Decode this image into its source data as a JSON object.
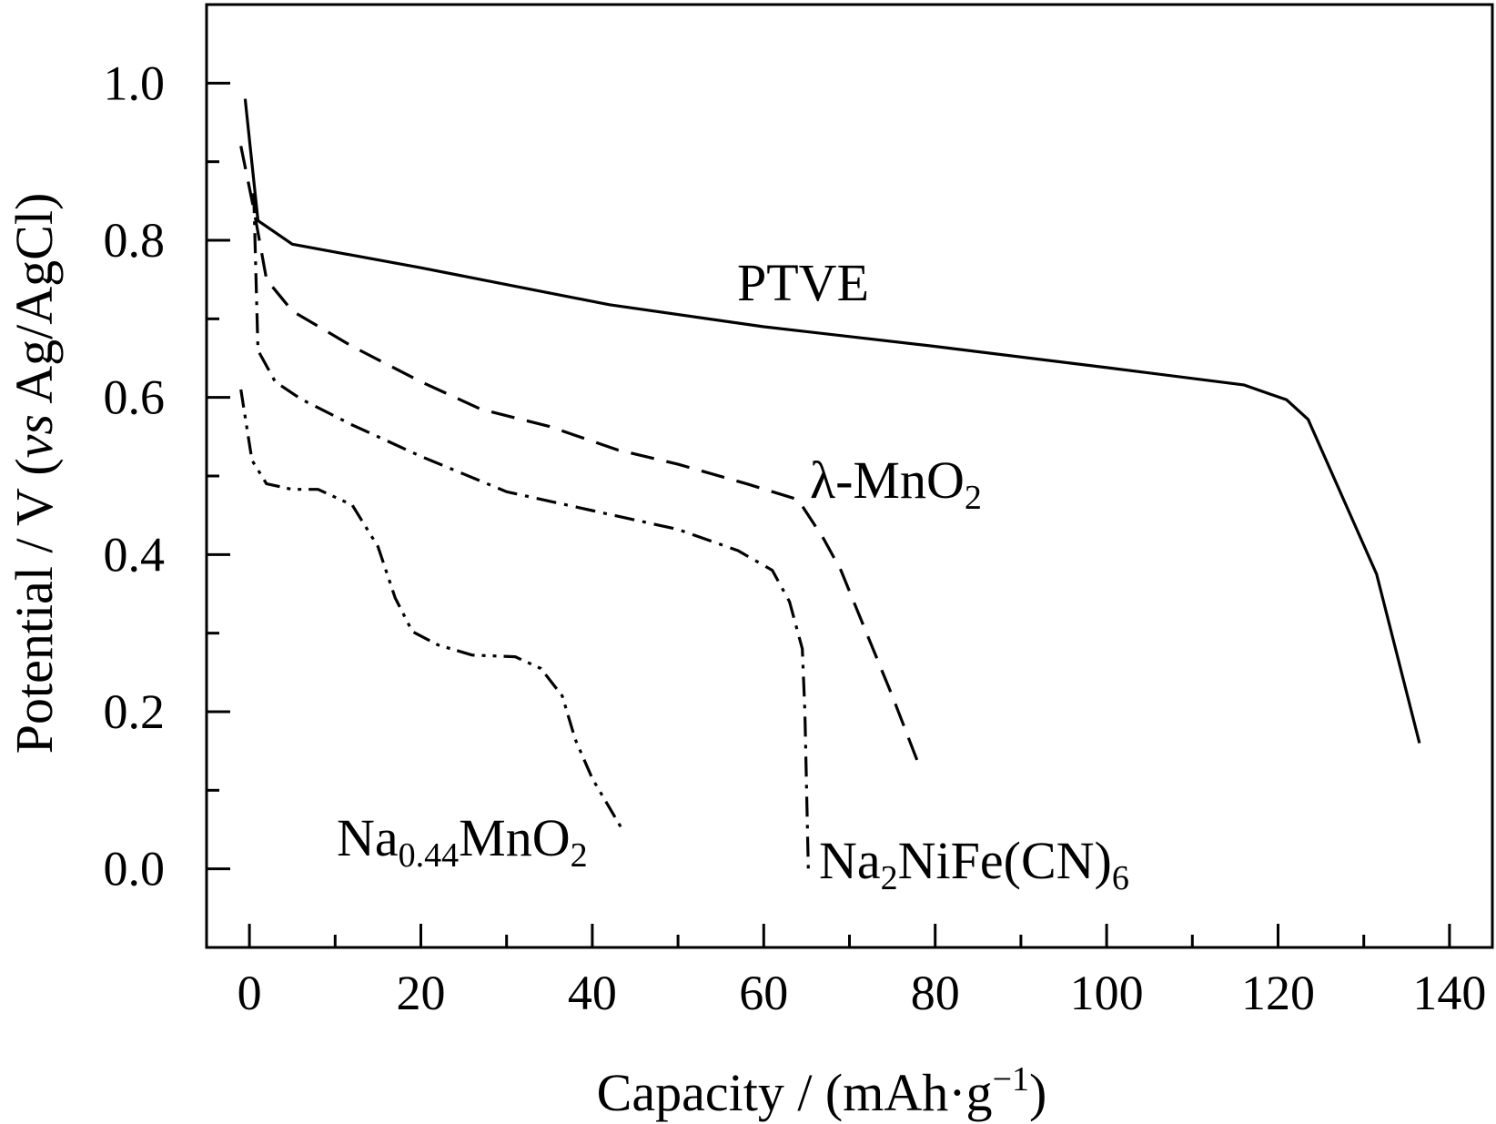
{
  "chart_data": {
    "type": "line",
    "xlabel": "Capacity / (mAh·g",
    "xlabel_sup": "−1",
    "xlabel_end": ")",
    "ylabel_pre": "Potential / V (",
    "ylabel_italic": "vs",
    "ylabel_post": " Ag/AgCl)",
    "xlim": [
      -5,
      145
    ],
    "ylim": [
      -0.1,
      1.1
    ],
    "x_ticks": [
      0,
      20,
      40,
      60,
      80,
      100,
      120,
      140
    ],
    "x_tick_labels": [
      "0",
      "20",
      "40",
      "60",
      "80",
      "100",
      "120",
      "140"
    ],
    "y_ticks": [
      0.0,
      0.2,
      0.4,
      0.6,
      0.8,
      1.0
    ],
    "y_tick_labels": [
      "0.0",
      "0.2",
      "0.4",
      "0.6",
      "0.8",
      "1.0"
    ],
    "grid": false,
    "legend": "none",
    "series": [
      {
        "name": "PTVE",
        "label_parts": [
          {
            "t": "PTVE",
            "sub": false
          }
        ],
        "style": "solid",
        "x": [
          -0.5,
          1,
          5,
          20,
          42,
          60,
          80,
          100,
          116,
          121,
          123.5,
          131.5,
          136.5
        ],
        "y": [
          0.98,
          0.825,
          0.795,
          0.765,
          0.718,
          0.69,
          0.665,
          0.638,
          0.616,
          0.597,
          0.572,
          0.375,
          0.16
        ]
      },
      {
        "name": "λ-MnO2",
        "label_parts": [
          {
            "t": "λ-MnO",
            "sub": false
          },
          {
            "t": "2",
            "sub": true
          }
        ],
        "style": "dashed",
        "x": [
          -1,
          0.5,
          2,
          5,
          12,
          20,
          27,
          35,
          43,
          50,
          58,
          64,
          67,
          69,
          72,
          75,
          78
        ],
        "y": [
          0.92,
          0.84,
          0.75,
          0.71,
          0.665,
          0.62,
          0.585,
          0.563,
          0.533,
          0.515,
          0.49,
          0.47,
          0.42,
          0.38,
          0.3,
          0.22,
          0.135
        ]
      },
      {
        "name": "Na2NiFe(CN)6",
        "label_parts": [
          {
            "t": "Na",
            "sub": false
          },
          {
            "t": "2",
            "sub": true
          },
          {
            "t": "NiFe(CN)",
            "sub": false
          },
          {
            "t": "6",
            "sub": true
          }
        ],
        "style": "dashdot",
        "x": [
          0.5,
          1,
          3,
          6,
          12,
          20,
          30,
          40,
          50,
          57,
          61,
          63,
          64.5,
          64.8,
          65,
          65.2
        ],
        "y": [
          0.86,
          0.66,
          0.62,
          0.598,
          0.565,
          0.525,
          0.48,
          0.456,
          0.432,
          0.405,
          0.38,
          0.34,
          0.28,
          0.2,
          0.1,
          0.0
        ]
      },
      {
        "name": "Na0.44MnO2",
        "label_parts": [
          {
            "t": "Na",
            "sub": false
          },
          {
            "t": "0.44",
            "sub": true
          },
          {
            "t": "MnO",
            "sub": false
          },
          {
            "t": "2",
            "sub": true
          }
        ],
        "style": "dashdotdot",
        "x": [
          -1,
          0.3,
          2,
          5,
          8,
          12,
          15,
          17,
          19,
          22,
          26,
          31,
          34,
          36.5,
          38,
          40,
          43.5
        ],
        "y": [
          0.61,
          0.52,
          0.49,
          0.483,
          0.483,
          0.463,
          0.41,
          0.345,
          0.302,
          0.285,
          0.272,
          0.27,
          0.255,
          0.22,
          0.165,
          0.115,
          0.05
        ]
      }
    ]
  }
}
